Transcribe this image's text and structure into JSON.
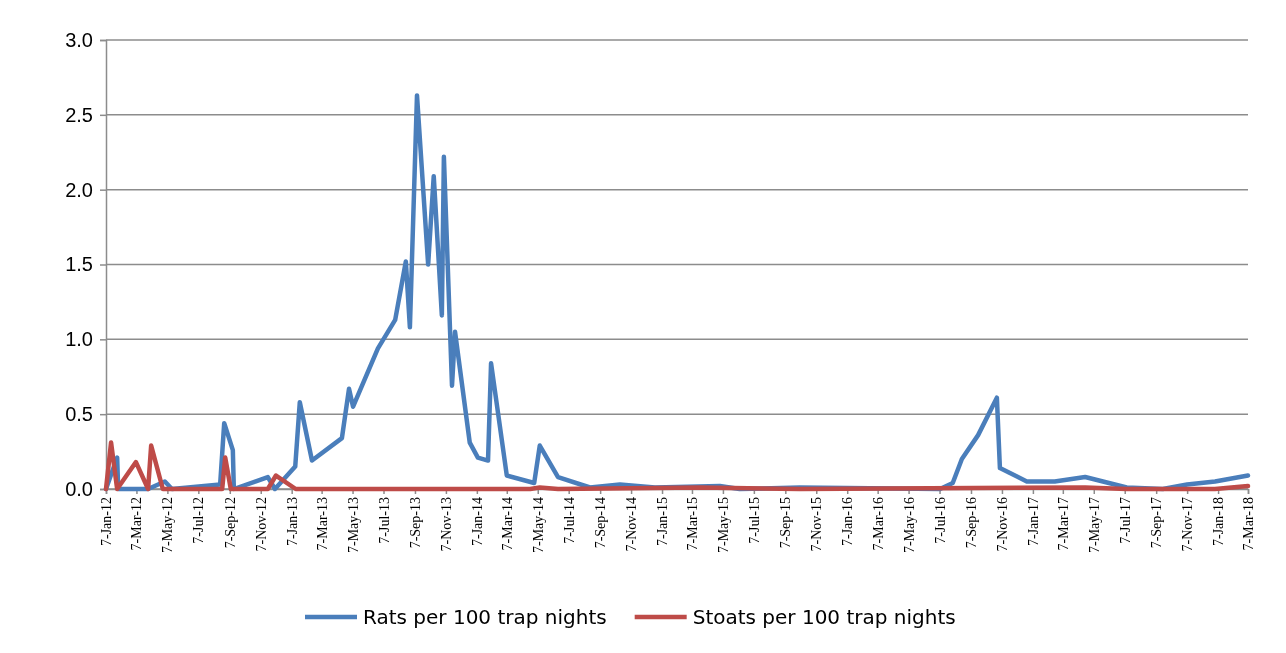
{
  "chart_data": {
    "type": "line",
    "xlim": [
      "2012-01-07",
      "2018-03-07"
    ],
    "xticks": [
      {
        "value": "2012-01-07",
        "label": "7-Jan-12"
      },
      {
        "value": "2012-03-07",
        "label": "7-Mar-12"
      },
      {
        "value": "2012-05-07",
        "label": "7-May-12"
      },
      {
        "value": "2012-07-07",
        "label": "7-Jul-12"
      },
      {
        "value": "2012-09-07",
        "label": "7-Sep-12"
      },
      {
        "value": "2012-11-07",
        "label": "7-Nov-12"
      },
      {
        "value": "2013-01-07",
        "label": "7-Jan-13"
      },
      {
        "value": "2013-03-07",
        "label": "7-Mar-13"
      },
      {
        "value": "2013-05-07",
        "label": "7-May-13"
      },
      {
        "value": "2013-07-07",
        "label": "7-Jul-13"
      },
      {
        "value": "2013-09-07",
        "label": "7-Sep-13"
      },
      {
        "value": "2013-11-07",
        "label": "7-Nov-13"
      },
      {
        "value": "2014-01-07",
        "label": "7-Jan-14"
      },
      {
        "value": "2014-03-07",
        "label": "7-Mar-14"
      },
      {
        "value": "2014-05-07",
        "label": "7-May-14"
      },
      {
        "value": "2014-07-07",
        "label": "7-Jul-14"
      },
      {
        "value": "2014-09-07",
        "label": "7-Sep-14"
      },
      {
        "value": "2014-11-07",
        "label": "7-Nov-14"
      },
      {
        "value": "2015-01-07",
        "label": "7-Jan-15"
      },
      {
        "value": "2015-03-07",
        "label": "7-Mar-15"
      },
      {
        "value": "2015-05-07",
        "label": "7-May-15"
      },
      {
        "value": "2015-07-07",
        "label": "7-Jul-15"
      },
      {
        "value": "2015-09-07",
        "label": "7-Sep-15"
      },
      {
        "value": "2015-11-07",
        "label": "7-Nov-15"
      },
      {
        "value": "2016-01-07",
        "label": "7-Jan-16"
      },
      {
        "value": "2016-03-07",
        "label": "7-Mar-16"
      },
      {
        "value": "2016-05-07",
        "label": "7-May-16"
      },
      {
        "value": "2016-07-07",
        "label": "7-Jul-16"
      },
      {
        "value": "2016-09-07",
        "label": "7-Sep-16"
      },
      {
        "value": "2016-11-07",
        "label": "7-Nov-16"
      },
      {
        "value": "2017-01-07",
        "label": "7-Jan-17"
      },
      {
        "value": "2017-03-07",
        "label": "7-Mar-17"
      },
      {
        "value": "2017-05-07",
        "label": "7-May-17"
      },
      {
        "value": "2017-07-07",
        "label": "7-Jul-17"
      },
      {
        "value": "2017-09-07",
        "label": "7-Sep-17"
      },
      {
        "value": "2017-11-07",
        "label": "7-Nov-17"
      },
      {
        "value": "2018-01-07",
        "label": "7-Jan-18"
      },
      {
        "value": "2018-03-07",
        "label": "7-Mar-18"
      }
    ],
    "ylim": [
      0,
      3
    ],
    "yticks": [
      {
        "value": 0,
        "label": "0.0"
      },
      {
        "value": 0.5,
        "label": "0.5"
      },
      {
        "value": 1,
        "label": "1.0"
      },
      {
        "value": 1.5,
        "label": "1.5"
      },
      {
        "value": 2,
        "label": "2.0"
      },
      {
        "value": 2.5,
        "label": "2.5"
      },
      {
        "value": 3,
        "label": "3.0"
      }
    ],
    "grid": "y",
    "legend": "bottom",
    "marker": "none",
    "line_style": "solid",
    "series": [
      {
        "name": "Rats per 100 trap nights",
        "color": "#4a7ebb",
        "x": [
          "2012-01-07",
          "2012-01-29",
          "2012-01-31",
          "2012-03-30",
          "2012-05-02",
          "2012-05-16",
          "2012-08-19",
          "2012-08-27",
          "2012-09-13",
          "2012-09-15",
          "2012-10-27",
          "2012-11-21",
          "2012-12-05",
          "2013-01-14",
          "2013-01-23",
          "2013-02-16",
          "2013-04-16",
          "2013-04-30",
          "2013-05-08",
          "2013-06-26",
          "2013-07-30",
          "2013-08-20",
          "2013-08-28",
          "2013-09-11",
          "2013-10-03",
          "2013-10-14",
          "2013-10-30",
          "2013-11-03",
          "2013-11-19",
          "2013-11-25",
          "2013-12-24",
          "2014-01-09",
          "2014-01-29",
          "2014-02-04",
          "2014-03-07",
          "2014-04-30",
          "2014-05-11",
          "2014-06-16",
          "2014-08-18",
          "2014-10-16",
          "2014-12-24",
          "2015-05-01",
          "2015-06-09",
          "2015-10-05",
          "2016-07-08",
          "2016-08-02",
          "2016-08-20",
          "2016-09-21",
          "2016-10-28",
          "2016-11-03",
          "2016-12-26",
          "2017-02-19",
          "2017-04-20",
          "2017-07-11",
          "2017-09-20",
          "2017-11-07",
          "2018-01-01",
          "2018-03-07"
        ],
        "values": [
          0,
          0.21,
          0,
          0,
          0.05,
          0,
          0.03,
          0.44,
          0.26,
          0,
          0.05,
          0.08,
          0,
          0.15,
          0.58,
          0.19,
          0.34,
          0.67,
          0.55,
          0.94,
          1.13,
          1.52,
          1.08,
          2.63,
          1.5,
          2.09,
          1.16,
          2.22,
          0.69,
          1.05,
          0.31,
          0.21,
          0.19,
          0.84,
          0.09,
          0.04,
          0.29,
          0.08,
          0.01,
          0.03,
          0.01,
          0.02,
          0,
          0.01,
          0,
          0.04,
          0.2,
          0.36,
          0.61,
          0.14,
          0.05,
          0.05,
          0.08,
          0.01,
          0,
          0.03,
          0.05,
          0.09
        ]
      },
      {
        "name": "Stoats per 100 trap nights",
        "color": "#be4b48",
        "x": [
          "2012-01-07",
          "2012-01-17",
          "2012-01-29",
          "2012-03-06",
          "2012-03-30",
          "2012-04-05",
          "2012-04-28",
          "2012-08-23",
          "2012-08-29",
          "2012-09-09",
          "2012-11-21",
          "2012-12-07",
          "2013-01-15",
          "2014-04-22",
          "2014-05-11",
          "2014-06-16",
          "2015-03-23",
          "2015-10-05",
          "2017-04-20",
          "2017-07-11",
          "2018-01-01",
          "2018-03-07"
        ],
        "values": [
          0,
          0.31,
          0,
          0.18,
          0,
          0.29,
          0,
          0,
          0.21,
          0,
          0,
          0.09,
          0,
          0,
          0.01,
          0,
          0.01,
          0,
          0.01,
          0,
          0,
          0.02
        ]
      }
    ]
  }
}
